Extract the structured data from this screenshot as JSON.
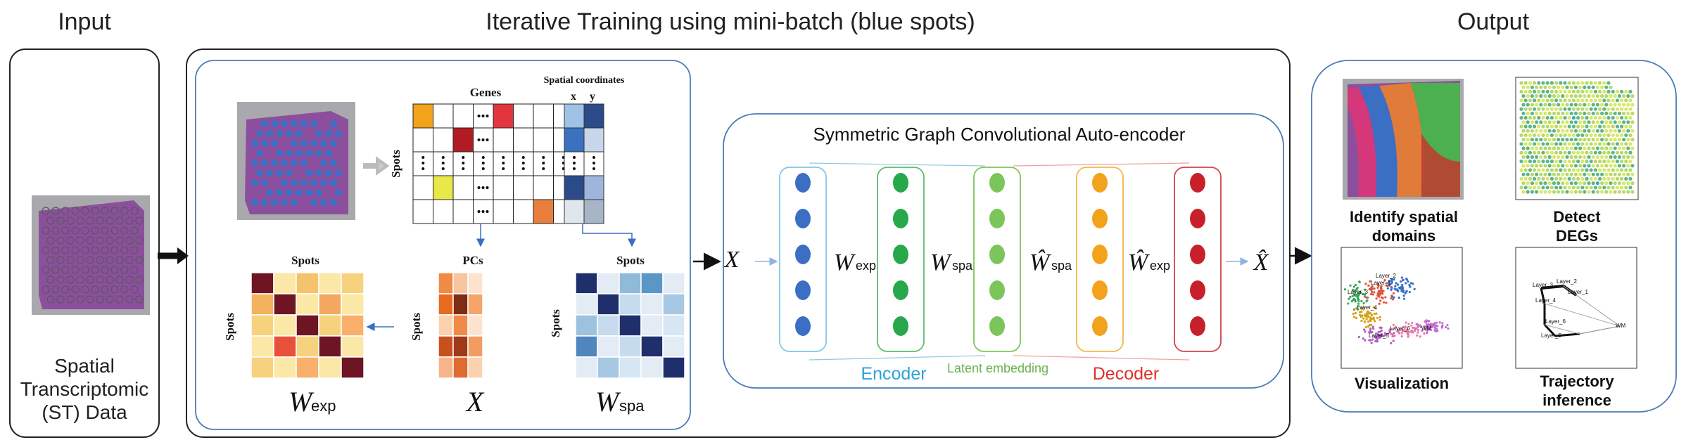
{
  "headings": {
    "input": "Input",
    "training": "Iterative Training using mini-batch (blue spots)",
    "output": "Output"
  },
  "input_panel": {
    "label_lines": [
      "Spatial",
      "Transcriptomic",
      "(ST) Data"
    ]
  },
  "matrix_panel": {
    "genes_label": "Genes",
    "spots_label": "Spots",
    "spatial_coords_label": "Spatial coordinates",
    "x_label": "x",
    "y_label": "y",
    "pcs_label": "PCs",
    "w_exp_symbol": "W",
    "w_exp_sub": "exp",
    "x_symbol": "X",
    "w_spa_symbol": "W",
    "w_spa_sub": "spa"
  },
  "autoencoder": {
    "title": "Symmetric Graph Convolutional Auto-encoder",
    "input_symbol": "X",
    "output_symbol": "X̂",
    "layer_labels": [
      {
        "symbol": "W",
        "sub": "exp"
      },
      {
        "symbol": "W",
        "sub": "spa"
      },
      {
        "symbol": "Ŵ",
        "sub": "spa"
      },
      {
        "symbol": "Ŵ",
        "sub": "exp"
      }
    ],
    "encoder_label": "Encoder",
    "latent_label": "Latent embedding",
    "decoder_label": "Decoder",
    "colors": {
      "layer1": "#3a6fc4",
      "layer2": "#27a84a",
      "layer3": "#7cc55a",
      "layer4": "#f2a31b",
      "layer5": "#c8202a",
      "encoder": "#2ba3d6",
      "latent": "#6ab04c",
      "decoder": "#e0302a"
    }
  },
  "output_panel": {
    "labels": [
      [
        "Identify spatial",
        "domains"
      ],
      [
        "Detect",
        "DEGs"
      ],
      [
        "Visualization"
      ],
      [
        "Trajectory",
        "inference"
      ]
    ],
    "umap_labels": [
      "Layer_1",
      "Layer_2",
      "Layer_3",
      "Layer_4",
      "Layer_5",
      "Layer_6",
      "WM"
    ]
  }
}
